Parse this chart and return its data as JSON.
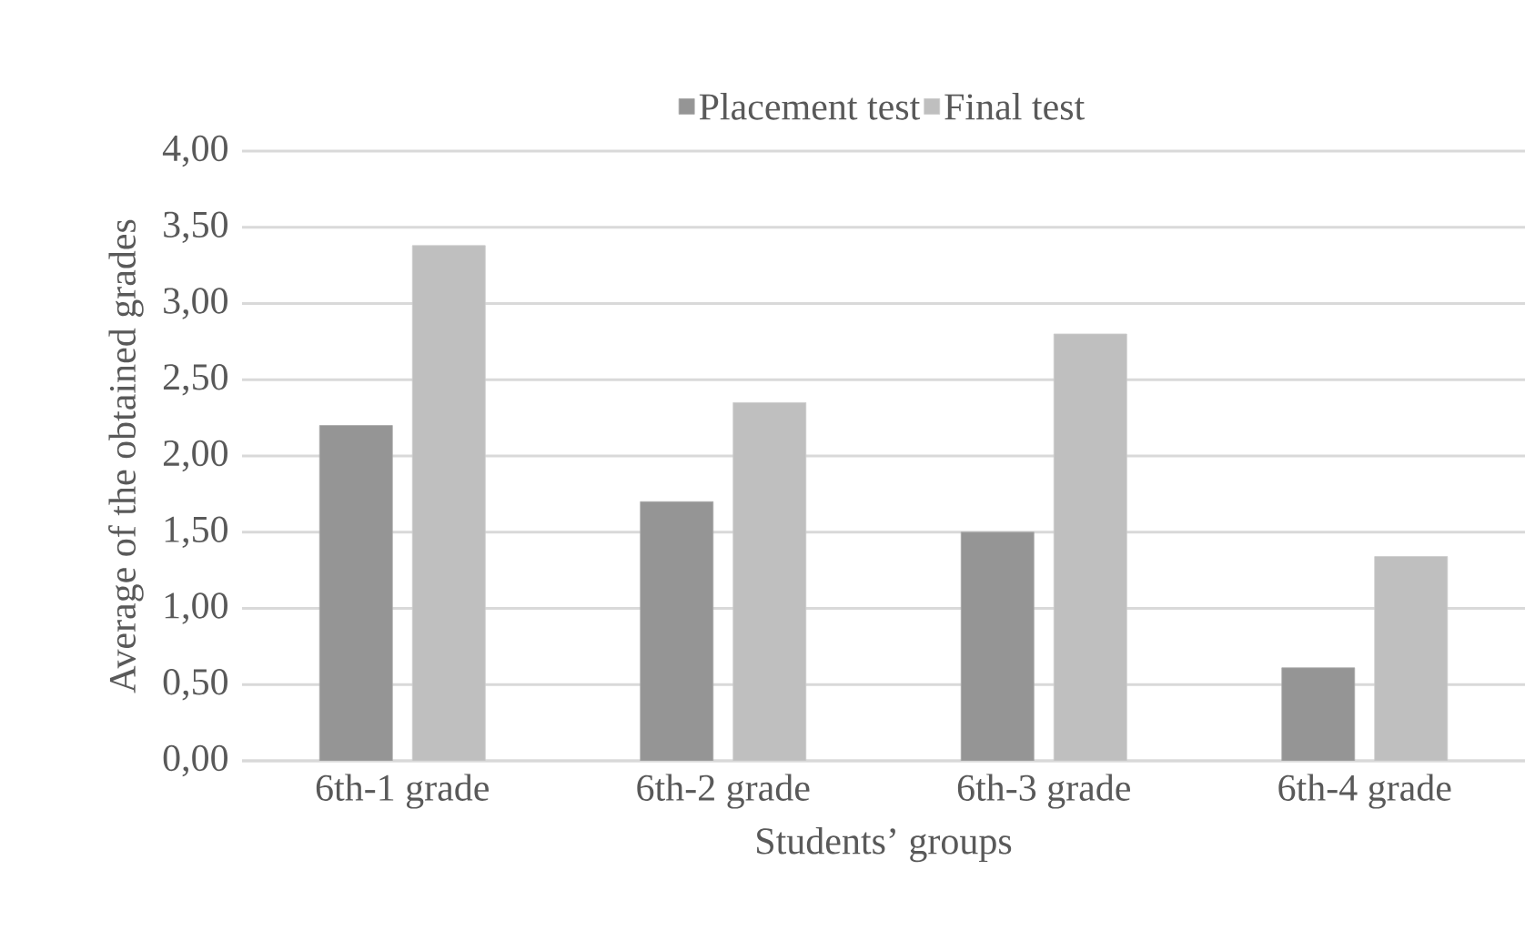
{
  "chart_data": {
    "type": "bar",
    "xlabel": "Students’ groups",
    "ylabel": "Average of the obtained grades",
    "categories": [
      "6th-1 grade",
      "6th-2 grade",
      "6th-3 grade",
      "6th-4 grade"
    ],
    "series": [
      {
        "name": "Placement test",
        "color": "#959595",
        "values": [
          2.2,
          1.7,
          1.5,
          0.61
        ]
      },
      {
        "name": "Final test",
        "color": "#bfbfbf",
        "values": [
          3.38,
          2.35,
          2.8,
          1.34
        ]
      }
    ],
    "ylim": [
      0,
      4
    ],
    "yticks": [
      {
        "value": 0,
        "label": "0,00"
      },
      {
        "value": 0.5,
        "label": "0,50"
      },
      {
        "value": 1,
        "label": "1,00"
      },
      {
        "value": 1.5,
        "label": "1,50"
      },
      {
        "value": 2,
        "label": "2,00"
      },
      {
        "value": 2.5,
        "label": "2,50"
      },
      {
        "value": 3,
        "label": "3,00"
      },
      {
        "value": 3.5,
        "label": "3,50"
      },
      {
        "value": 4,
        "label": "4,00"
      }
    ],
    "grid": "y",
    "legend": "top"
  }
}
